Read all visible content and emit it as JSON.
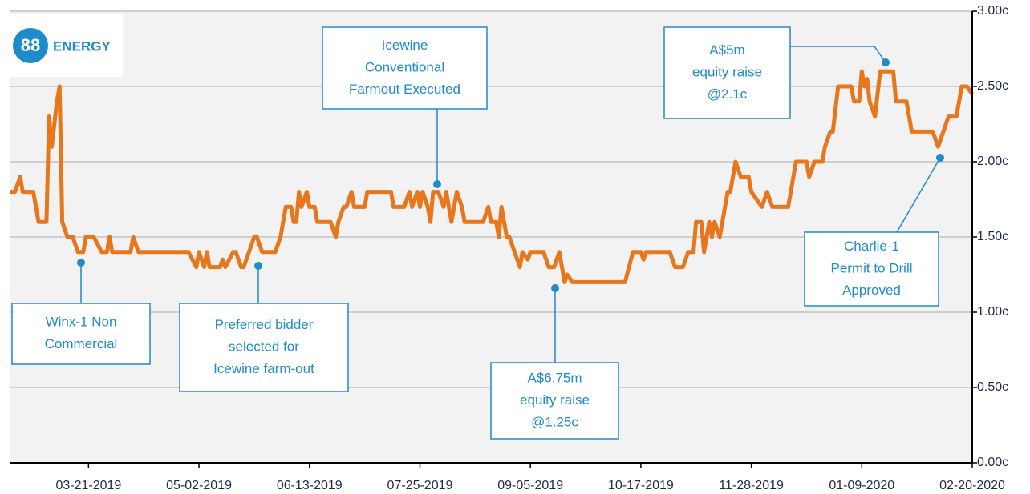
{
  "logo": {
    "mark": "88",
    "text": "ENERGY"
  },
  "chart_data": {
    "type": "line",
    "color": "#e8761c",
    "background": "#f2f2f2",
    "grid": true,
    "x": [
      "02-19-2019",
      "02-21-2019",
      "02-23-2019",
      "02-24-2019",
      "02-27-2019",
      "02-28-2019",
      "03-02-2019",
      "03-05-2019",
      "03-06-2019",
      "03-07-2019",
      "03-09-2019",
      "03-10-2019",
      "03-11-2019",
      "03-13-2019",
      "03-15-2019",
      "03-17-2019",
      "03-19-2019",
      "03-20-2019",
      "03-23-2019",
      "03-26-2019",
      "03-28-2019",
      "03-29-2019",
      "03-30-2019",
      "04-06-2019",
      "04-07-2019",
      "04-09-2019",
      "04-28-2019",
      "05-01-2019",
      "05-02-2019",
      "05-04-2019",
      "05-05-2019",
      "05-06-2019",
      "05-10-2019",
      "05-11-2019",
      "05-12-2019",
      "05-15-2019",
      "05-16-2019",
      "05-18-2019",
      "05-19-2019",
      "05-21-2019",
      "05-23-2019",
      "05-24-2019",
      "05-26-2019",
      "05-31-2019",
      "06-02-2019",
      "06-04-2019",
      "06-06-2019",
      "06-07-2019",
      "06-08-2019",
      "06-09-2019",
      "06-10-2019",
      "06-12-2019",
      "06-13-2019",
      "06-15-2019",
      "06-16-2019",
      "06-21-2019",
      "06-23-2019",
      "06-24-2019",
      "06-26-2019",
      "06-27-2019",
      "06-29-2019",
      "06-30-2019",
      "07-04-2019",
      "07-05-2019",
      "07-14-2019",
      "07-15-2019",
      "07-19-2019",
      "07-21-2019",
      "07-22-2019",
      "07-24-2019",
      "07-25-2019",
      "07-26-2019",
      "07-28-2019",
      "07-29-2019",
      "07-30-2019",
      "08-01-2019",
      "08-03-2019",
      "08-04-2019",
      "08-06-2019",
      "08-08-2019",
      "08-10-2019",
      "08-11-2019",
      "08-18-2019",
      "08-20-2019",
      "08-21-2019",
      "08-23-2019",
      "08-24-2019",
      "08-25-2019",
      "08-27-2019",
      "08-28-2019",
      "08-30-2019",
      "09-01-2019",
      "09-02-2019",
      "09-04-2019",
      "09-05-2019",
      "09-10-2019",
      "09-12-2019",
      "09-14-2019",
      "09-16-2019",
      "09-18-2019",
      "09-19-2019",
      "09-21-2019",
      "10-11-2019",
      "10-14-2019",
      "10-17-2019",
      "10-18-2019",
      "10-19-2019",
      "10-28-2019",
      "10-30-2019",
      "11-02-2019",
      "11-04-2019",
      "11-06-2019",
      "11-07-2019",
      "11-09-2019",
      "11-10-2019",
      "11-12-2019",
      "11-13-2019",
      "11-14-2019",
      "11-16-2019",
      "11-19-2019",
      "11-20-2019",
      "11-22-2019",
      "11-24-2019",
      "11-27-2019",
      "11-28-2019",
      "12-02-2019",
      "12-04-2019",
      "12-06-2019",
      "12-12-2019",
      "12-14-2019",
      "12-15-2019",
      "12-19-2019",
      "12-20-2019",
      "12-22-2019",
      "12-25-2019",
      "12-26-2019",
      "12-28-2019",
      "12-29-2019",
      "12-31-2019",
      "01-05-2020",
      "01-06-2020",
      "01-08-2020",
      "01-09-2020",
      "01-10-2020",
      "01-11-2020",
      "01-12-2020",
      "01-14-2020",
      "01-16-2020",
      "01-21-2020",
      "01-22-2020",
      "01-26-2020",
      "01-28-2020",
      "02-05-2020",
      "02-07-2020",
      "02-09-2020",
      "02-11-2020",
      "02-14-2020",
      "02-16-2020",
      "02-18-2020",
      "02-20-2020"
    ],
    "values": [
      1.8,
      1.8,
      1.9,
      1.8,
      1.8,
      1.8,
      1.6,
      1.6,
      2.3,
      2.1,
      2.4,
      2.5,
      1.6,
      1.5,
      1.5,
      1.4,
      1.4,
      1.5,
      1.5,
      1.4,
      1.4,
      1.5,
      1.4,
      1.4,
      1.5,
      1.4,
      1.4,
      1.3,
      1.4,
      1.3,
      1.4,
      1.3,
      1.3,
      1.35,
      1.3,
      1.4,
      1.4,
      1.3,
      1.3,
      1.4,
      1.5,
      1.5,
      1.4,
      1.4,
      1.5,
      1.7,
      1.7,
      1.6,
      1.6,
      1.8,
      1.7,
      1.8,
      1.7,
      1.7,
      1.6,
      1.6,
      1.5,
      1.6,
      1.7,
      1.7,
      1.8,
      1.7,
      1.7,
      1.8,
      1.8,
      1.7,
      1.7,
      1.8,
      1.7,
      1.8,
      1.7,
      1.8,
      1.7,
      1.6,
      1.8,
      1.8,
      1.7,
      1.8,
      1.6,
      1.8,
      1.7,
      1.6,
      1.6,
      1.7,
      1.6,
      1.6,
      1.5,
      1.7,
      1.5,
      1.5,
      1.4,
      1.3,
      1.4,
      1.35,
      1.4,
      1.4,
      1.3,
      1.3,
      1.4,
      1.2,
      1.25,
      1.2,
      1.2,
      1.4,
      1.4,
      1.35,
      1.4,
      1.4,
      1.3,
      1.3,
      1.4,
      1.4,
      1.6,
      1.6,
      1.4,
      1.6,
      1.5,
      1.6,
      1.5,
      1.8,
      1.8,
      2.0,
      1.9,
      1.9,
      1.8,
      1.7,
      1.8,
      1.7,
      1.7,
      1.9,
      2.0,
      2.0,
      1.9,
      2.0,
      2.0,
      2.1,
      2.2,
      2.2,
      2.5,
      2.5,
      2.4,
      2.4,
      2.6,
      2.5,
      2.55,
      2.4,
      2.3,
      2.6,
      2.6,
      2.4,
      2.4,
      2.2,
      2.2,
      2.1,
      2.2,
      2.3,
      2.3,
      2.5,
      2.5,
      2.45
    ],
    "xlim": [
      "02-19-2019",
      "02-20-2020"
    ],
    "xticks": [
      "03-21-2019",
      "05-02-2019",
      "06-13-2019",
      "07-25-2019",
      "09-05-2019",
      "10-17-2019",
      "11-28-2019",
      "01-09-2020",
      "02-20-2020"
    ],
    "ylim": [
      0,
      3
    ],
    "yticks": [
      {
        "value": 0,
        "label": "0.00c"
      },
      {
        "value": 0.5,
        "label": "0.50c"
      },
      {
        "value": 1,
        "label": "1.00c"
      },
      {
        "value": 1.5,
        "label": "1.50c"
      },
      {
        "value": 2,
        "label": "2.00c"
      },
      {
        "value": 2.5,
        "label": "2.50c"
      },
      {
        "value": 3,
        "label": "3.00c"
      }
    ],
    "annotations": [
      {
        "lines": [
          "Winx-1 Non",
          "Commercial"
        ]
      },
      {
        "lines": [
          "Preferred bidder",
          "selected for",
          "Icewine farm-out"
        ]
      },
      {
        "lines": [
          "Icewine",
          "Conventional",
          "Farmout Executed"
        ]
      },
      {
        "lines": [
          "A$6.75m",
          "equity raise",
          "@1.25c"
        ]
      },
      {
        "lines": [
          "A$5m",
          "equity raise",
          "@2.1c"
        ]
      },
      {
        "lines": [
          "Charlie-1",
          "Permit to Drill",
          "Approved"
        ]
      }
    ]
  }
}
